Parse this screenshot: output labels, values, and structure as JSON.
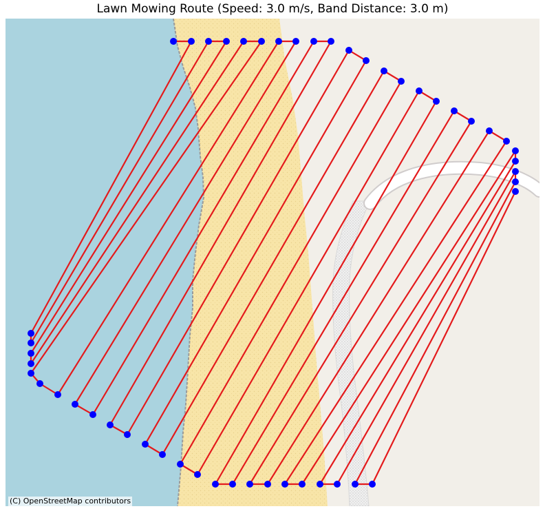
{
  "title": "Lawn Mowing Route (Speed: 3.0 m/s, Band Distance: 3.0 m)",
  "attribution": "(C) OpenStreetMap contributors",
  "colors": {
    "water": "#aad3df",
    "sand": "#f8e5a8",
    "land": "#f2efe9",
    "road": "#ffffff",
    "route_line": "#e41a1c",
    "waypoint": "#0000ff"
  },
  "map_features": [
    "water",
    "sand-beach",
    "land",
    "road",
    "dotted-path"
  ],
  "route": {
    "waypoint_count": 55
  }
}
